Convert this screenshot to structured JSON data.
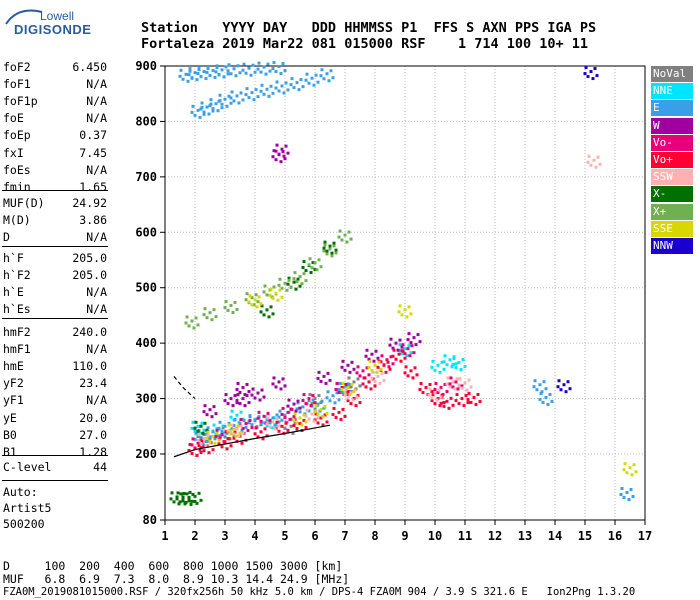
{
  "logo": {
    "line1": "Lowell",
    "line2": "DIGISONDE"
  },
  "header": {
    "line1": "Station   YYYY DAY   DDD HHMMSS P1  FFS S AXN PPS IGA PS",
    "line2": "Fortaleza 2019 Mar22 081 015000 RSF    1 714 100 10+ 11"
  },
  "params_group1": [
    {
      "name": "foF2",
      "value": "6.450"
    },
    {
      "name": "foF1",
      "value": "N/A"
    },
    {
      "name": "foF1p",
      "value": "N/A"
    },
    {
      "name": "foE",
      "value": "N/A"
    },
    {
      "name": "foEp",
      "value": "0.37"
    },
    {
      "name": "fxI",
      "value": "7.45"
    },
    {
      "name": "foEs",
      "value": "N/A"
    },
    {
      "name": "fmin",
      "value": "1.65"
    }
  ],
  "params_group2": [
    {
      "name": "MUF(D)",
      "value": "24.92"
    },
    {
      "name": "M(D)",
      "value": "3.86"
    },
    {
      "name": "D",
      "value": "N/A"
    }
  ],
  "params_group3": [
    {
      "name": "h`F",
      "value": "205.0"
    },
    {
      "name": "h`F2",
      "value": "205.0"
    },
    {
      "name": "h`E",
      "value": "N/A"
    },
    {
      "name": "h`Es",
      "value": "N/A"
    }
  ],
  "params_group4": [
    {
      "name": "hmF2",
      "value": "240.0"
    },
    {
      "name": "hmF1",
      "value": "N/A"
    },
    {
      "name": "hmE",
      "value": "110.0"
    },
    {
      "name": "yF2",
      "value": "23.4"
    },
    {
      "name": "yF1",
      "value": "N/A"
    },
    {
      "name": "yE",
      "value": "20.0"
    },
    {
      "name": "B0",
      "value": "27.0"
    },
    {
      "name": "B1",
      "value": "1.28"
    }
  ],
  "c_level": {
    "name": "C-level",
    "value": "44"
  },
  "auto": {
    "line1": "Auto:",
    "line2": "Artist5",
    "line3": "500200"
  },
  "bottom": {
    "line1": "D     100  200  400  600  800 1000 1500 3000 [km]",
    "line2": "MUF   6.8  6.9  7.3  8.0  8.9 10.3 14.4 24.9 [MHz]",
    "line3": "FZA0M_2019081015000.RSF / 320fx256h 50 kHz 5.0 km / DPS-4 FZA0M 904 / 3.9 S 321.6 E   Ion2Png 1.3.20"
  },
  "legend": [
    {
      "label": "NoVal",
      "color": "#808080"
    },
    {
      "label": "NNE",
      "color": "#00e5ff"
    },
    {
      "label": "E",
      "color": "#39a0e8"
    },
    {
      "label": "W",
      "color": "#a000a0"
    },
    {
      "label": "Vo-",
      "color": "#e8007a"
    },
    {
      "label": "Vo+",
      "color": "#ff0033"
    },
    {
      "label": "SSW",
      "color": "#ffb0b0"
    },
    {
      "label": "X-",
      "color": "#007000"
    },
    {
      "label": "X+",
      "color": "#70b050"
    },
    {
      "label": "SSE",
      "color": "#d8d800"
    },
    {
      "label": "NNW",
      "color": "#1a00d0"
    }
  ],
  "chart_data": {
    "type": "scatter",
    "xlim": [
      1,
      17
    ],
    "ylim": [
      80,
      900
    ],
    "x_ticks": [
      1,
      2,
      3,
      4,
      5,
      6,
      7,
      8,
      9,
      10,
      11,
      12,
      13,
      14,
      15,
      16,
      17
    ],
    "y_ticks": [
      80,
      200,
      300,
      400,
      500,
      600,
      700,
      800,
      900
    ],
    "grid": true,
    "x_unit": "MHz",
    "y_unit": "km",
    "trace": {
      "x": [
        1.3,
        2,
        3,
        4,
        5,
        6,
        6.5
      ],
      "y": [
        195,
        208,
        218,
        228,
        237,
        247,
        252
      ]
    },
    "trace_dashed": {
      "x": [
        1.3,
        1.6,
        2.0
      ],
      "y": [
        340,
        320,
        300
      ]
    },
    "series": [
      {
        "name": "NoVal",
        "color": "#808080",
        "x": [
          2.3,
          3.1,
          4.0,
          5.2,
          6.0,
          7.3
        ],
        "y": [
          235,
          240,
          260,
          250,
          300,
          330
        ]
      },
      {
        "name": "NNE",
        "color": "#00e5ff",
        "x": [
          2.1,
          2.8,
          3.4,
          4.5,
          6.2,
          7.8,
          9.0,
          10.1,
          10.5,
          10.8
        ],
        "y": [
          250,
          245,
          270,
          260,
          280,
          330,
          390,
          360,
          370,
          365
        ]
      },
      {
        "name": "E",
        "color": "#39a0e8",
        "x": [
          2.2,
          2.6,
          3.0,
          3.5,
          4.0,
          4.6,
          5.0,
          5.6,
          6.1,
          6.6,
          7.0,
          2.1,
          2.4,
          2.7,
          3.0,
          3.4,
          3.9,
          4.4,
          4.9,
          5.4,
          5.9,
          6.4,
          1.7,
          2.0,
          2.3,
          2.6,
          2.9,
          3.3,
          3.8,
          4.3,
          4.8,
          13.5,
          13.7,
          16.4
        ],
        "y": [
          230,
          240,
          250,
          255,
          262,
          265,
          270,
          285,
          290,
          305,
          320,
          820,
          826,
          832,
          840,
          846,
          852,
          858,
          864,
          870,
          878,
          886,
          885,
          888,
          890,
          892,
          893,
          895,
          896,
          898,
          899,
          325,
          302,
          130
        ]
      },
      {
        "name": "W",
        "color": "#a000a0",
        "x": [
          2.5,
          3.2,
          3.6,
          4.1,
          4.8,
          5.3,
          6.3,
          7.1,
          7.9,
          8.7,
          9.3,
          3.6,
          4.9,
          4.8
        ],
        "y": [
          280,
          300,
          320,
          310,
          330,
          290,
          340,
          360,
          380,
          400,
          410,
          300,
          750,
          740
        ]
      },
      {
        "name": "Vo-",
        "color": "#e8007a",
        "x": [
          2.1,
          2.9,
          3.7,
          4.3,
          5.1,
          5.8,
          6.9,
          7.6,
          8.4,
          9.1,
          10.2,
          10.7
        ],
        "y": [
          220,
          235,
          255,
          268,
          275,
          300,
          320,
          350,
          370,
          390,
          320,
          330
        ]
      },
      {
        "name": "Vo+",
        "color": "#ff0033",
        "x": [
          2.0,
          2.4,
          3.0,
          3.5,
          4.2,
          4.9,
          5.5,
          6.2,
          6.8,
          7.3,
          7.8,
          8.3,
          8.8,
          9.2,
          9.7,
          10.1,
          10.4,
          10.9,
          11.3
        ],
        "y": [
          210,
          215,
          222,
          232,
          240,
          250,
          255,
          265,
          275,
          300,
          330,
          360,
          380,
          350,
          320,
          300,
          295,
          300,
          302
        ]
      },
      {
        "name": "SSW",
        "color": "#ffb0b0",
        "x": [
          2.3,
          3.4,
          4.6,
          5.9,
          7.2,
          8.1,
          10.0,
          10.6,
          11.0,
          15.3
        ],
        "y": [
          228,
          245,
          258,
          272,
          310,
          340,
          310,
          330,
          328,
          730
        ]
      },
      {
        "name": "X-",
        "color": "#007000",
        "x": [
          1.4,
          1.6,
          1.8,
          2.0,
          2.2,
          4.4,
          5.3,
          5.8,
          6.5
        ],
        "y": [
          122,
          122,
          121,
          123,
          250,
          460,
          510,
          540,
          575
        ]
      },
      {
        "name": "X+",
        "color": "#70b050",
        "x": [
          1.9,
          2.5,
          3.2,
          3.9,
          4.5,
          5.0,
          5.5,
          6.0,
          6.5,
          7.0
        ],
        "y": [
          440,
          455,
          468,
          482,
          496,
          508,
          520,
          545,
          570,
          595
        ]
      },
      {
        "name": "SSE",
        "color": "#d8d800",
        "x": [
          2.6,
          3.3,
          4.0,
          4.7,
          5.5,
          6.2,
          7.1,
          8.0,
          9.0,
          16.5
        ],
        "y": [
          232,
          245,
          478,
          490,
          265,
          280,
          320,
          360,
          460,
          175
        ]
      },
      {
        "name": "NNW",
        "color": "#1a00d0",
        "x": [
          14.3,
          15.2
        ],
        "y": [
          325,
          890
        ]
      }
    ]
  }
}
